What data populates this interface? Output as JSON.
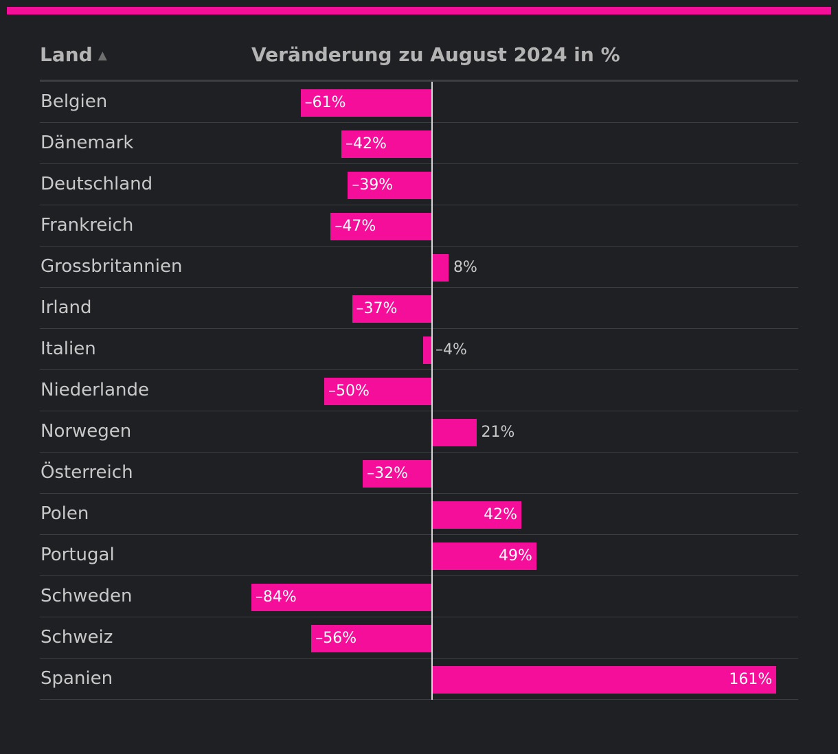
{
  "colors": {
    "accent": "#f40e99",
    "background": "#1f2023",
    "label_inside": "#ffffff",
    "label_outside": "#c8c8c8"
  },
  "header": {
    "country_col": "Land",
    "sort_icon": "▲",
    "value_col": "Veränderung zu August 2024 in %"
  },
  "chart_data": {
    "type": "bar",
    "orientation": "horizontal",
    "title": "",
    "xlabel": "Veränderung zu August 2024 in %",
    "ylabel": "Land",
    "xlim": [
      -89,
      164
    ],
    "grid": false,
    "categories": [
      "Belgien",
      "Dänemark",
      "Deutschland",
      "Frankreich",
      "Grossbritannien",
      "Irland",
      "Italien",
      "Niederlande",
      "Norwegen",
      "Österreich",
      "Polen",
      "Portugal",
      "Schweden",
      "Schweiz",
      "Spanien"
    ],
    "values": [
      -61,
      -42,
      -39,
      -47,
      8,
      -37,
      -4,
      -50,
      21,
      -32,
      42,
      49,
      -84,
      -56,
      161
    ],
    "labels": [
      "–61%",
      "–42%",
      "–39%",
      "–47%",
      "8%",
      "–37%",
      "–4%",
      "–50%",
      "21%",
      "–32%",
      "42%",
      "49%",
      "–84%",
      "–56%",
      "161%"
    ]
  }
}
